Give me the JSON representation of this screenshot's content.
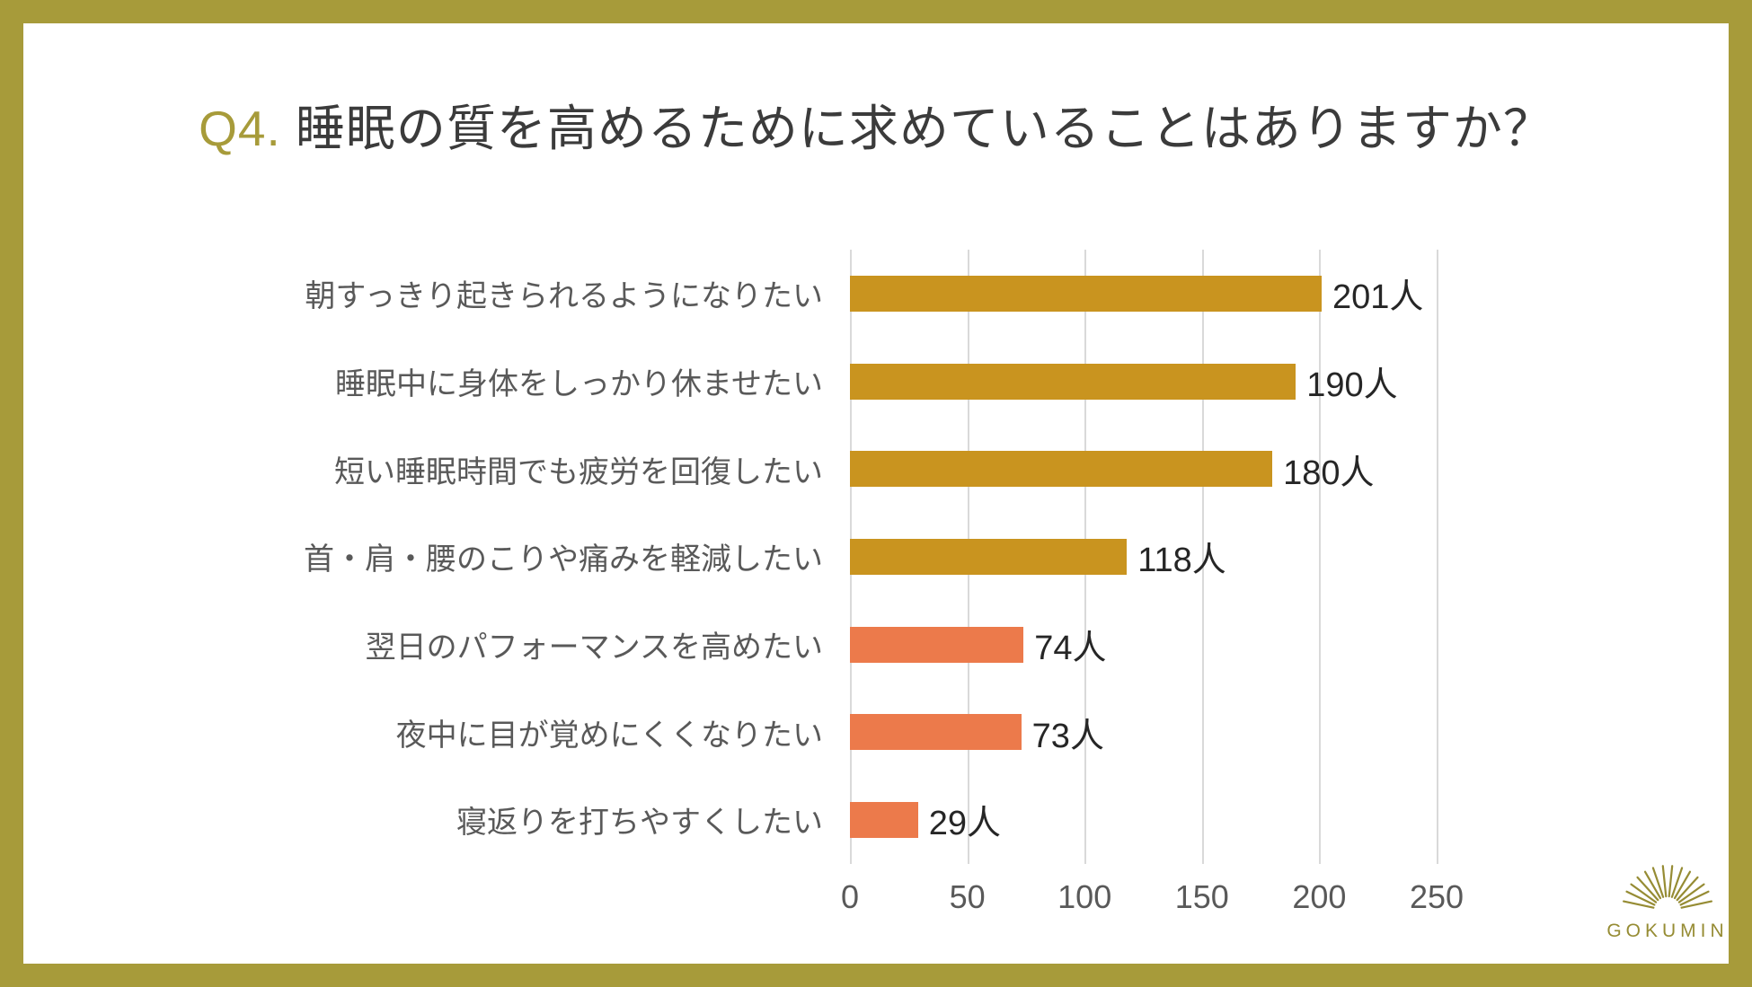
{
  "frame": {
    "border_color": "#a79b3a",
    "background": "#ffffff"
  },
  "title": {
    "prefix": "Q4.",
    "text": "睡眠の質を高めるために求めていることはありますか？",
    "prefix_color": "#a79b3a"
  },
  "chart_data": {
    "type": "bar",
    "orientation": "horizontal",
    "categories": [
      "朝すっきり起きられるようになりたい",
      "睡眠中に身体をしっかり休ませたい",
      "短い睡眠時間でも疲労を回復したい",
      "首・肩・腰のこりや痛みを軽減したい",
      "翌日のパフォーマンスを高めたい",
      "夜中に目が覚めにくくなりたい",
      "寝返りを打ちやすくしたい"
    ],
    "values": [
      201,
      190,
      180,
      118,
      74,
      73,
      29
    ],
    "unit_suffix": "人",
    "bar_colors": [
      "#c9941f",
      "#c9941f",
      "#c9941f",
      "#c9941f",
      "#ec7a4b",
      "#ec7a4b",
      "#ec7a4b"
    ],
    "xlim": [
      0,
      250
    ],
    "x_ticks": [
      0,
      50,
      100,
      150,
      200,
      250
    ],
    "grid": true,
    "gridline_color": "#d9d9d9",
    "legend": "none",
    "title": "Q4. 睡眠の質を高めるために求めていることはありますか？"
  },
  "logo": {
    "text": "GOKUMIN",
    "color": "#968c34",
    "icon": "sunburst-icon"
  }
}
